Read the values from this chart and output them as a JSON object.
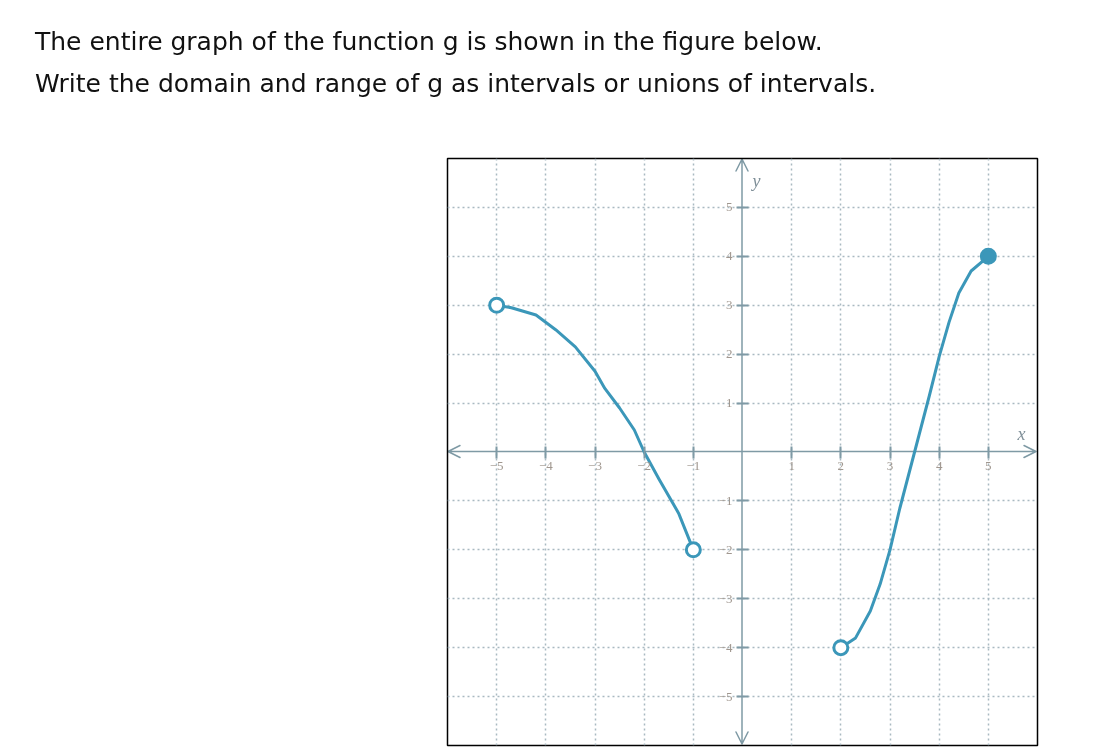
{
  "chart_data": {
    "type": "line",
    "title": "The entire graph of the function g is shown in the figure below.",
    "subtitle": "Write the domain and range of g as intervals or unions of intervals.",
    "xlabel": "x",
    "ylabel": "y",
    "xlim": [
      -6,
      6
    ],
    "ylim": [
      -6,
      6
    ],
    "xticks": [
      -5,
      -4,
      -3,
      -2,
      -1,
      1,
      2,
      3,
      4,
      5
    ],
    "yticks": [
      -5,
      -4,
      -3,
      -2,
      -1,
      1,
      2,
      3,
      4,
      5
    ],
    "grid": true,
    "marker": "none",
    "line_style": "solid",
    "series": [
      {
        "color": "#3b97b9",
        "x": [
          -5,
          -4.7,
          -4.2,
          -3.8,
          -3.4,
          -3.0,
          -2.8,
          -2.5,
          -2.2,
          -2.0,
          -1.7,
          -1.3,
          -1.0
        ],
        "values": [
          3,
          2.95,
          2.8,
          2.5,
          2.15,
          1.65,
          1.3,
          0.9,
          0.45,
          0,
          -0.55,
          -1.25,
          -2
        ]
      },
      {
        "color": "#3b97b9",
        "x": [
          2,
          2.3,
          2.6,
          2.8,
          3.0,
          3.2,
          3.5,
          3.8,
          4.0,
          4.2,
          4.4,
          4.65,
          5
        ],
        "values": [
          -4,
          -3.8,
          -3.25,
          -2.7,
          -2.0,
          -1.15,
          0,
          1.15,
          1.95,
          2.65,
          3.25,
          3.7,
          4
        ]
      },
      {
        "type": "scatter",
        "marker": "circle",
        "color": "#3b97b9",
        "colors": [
          "#ffffff",
          "#ffffff",
          "#ffffff",
          "#3b97b9"
        ],
        "x": [
          -5,
          -1,
          2,
          5
        ],
        "values": [
          3,
          -2,
          -4,
          4
        ]
      }
    ]
  }
}
